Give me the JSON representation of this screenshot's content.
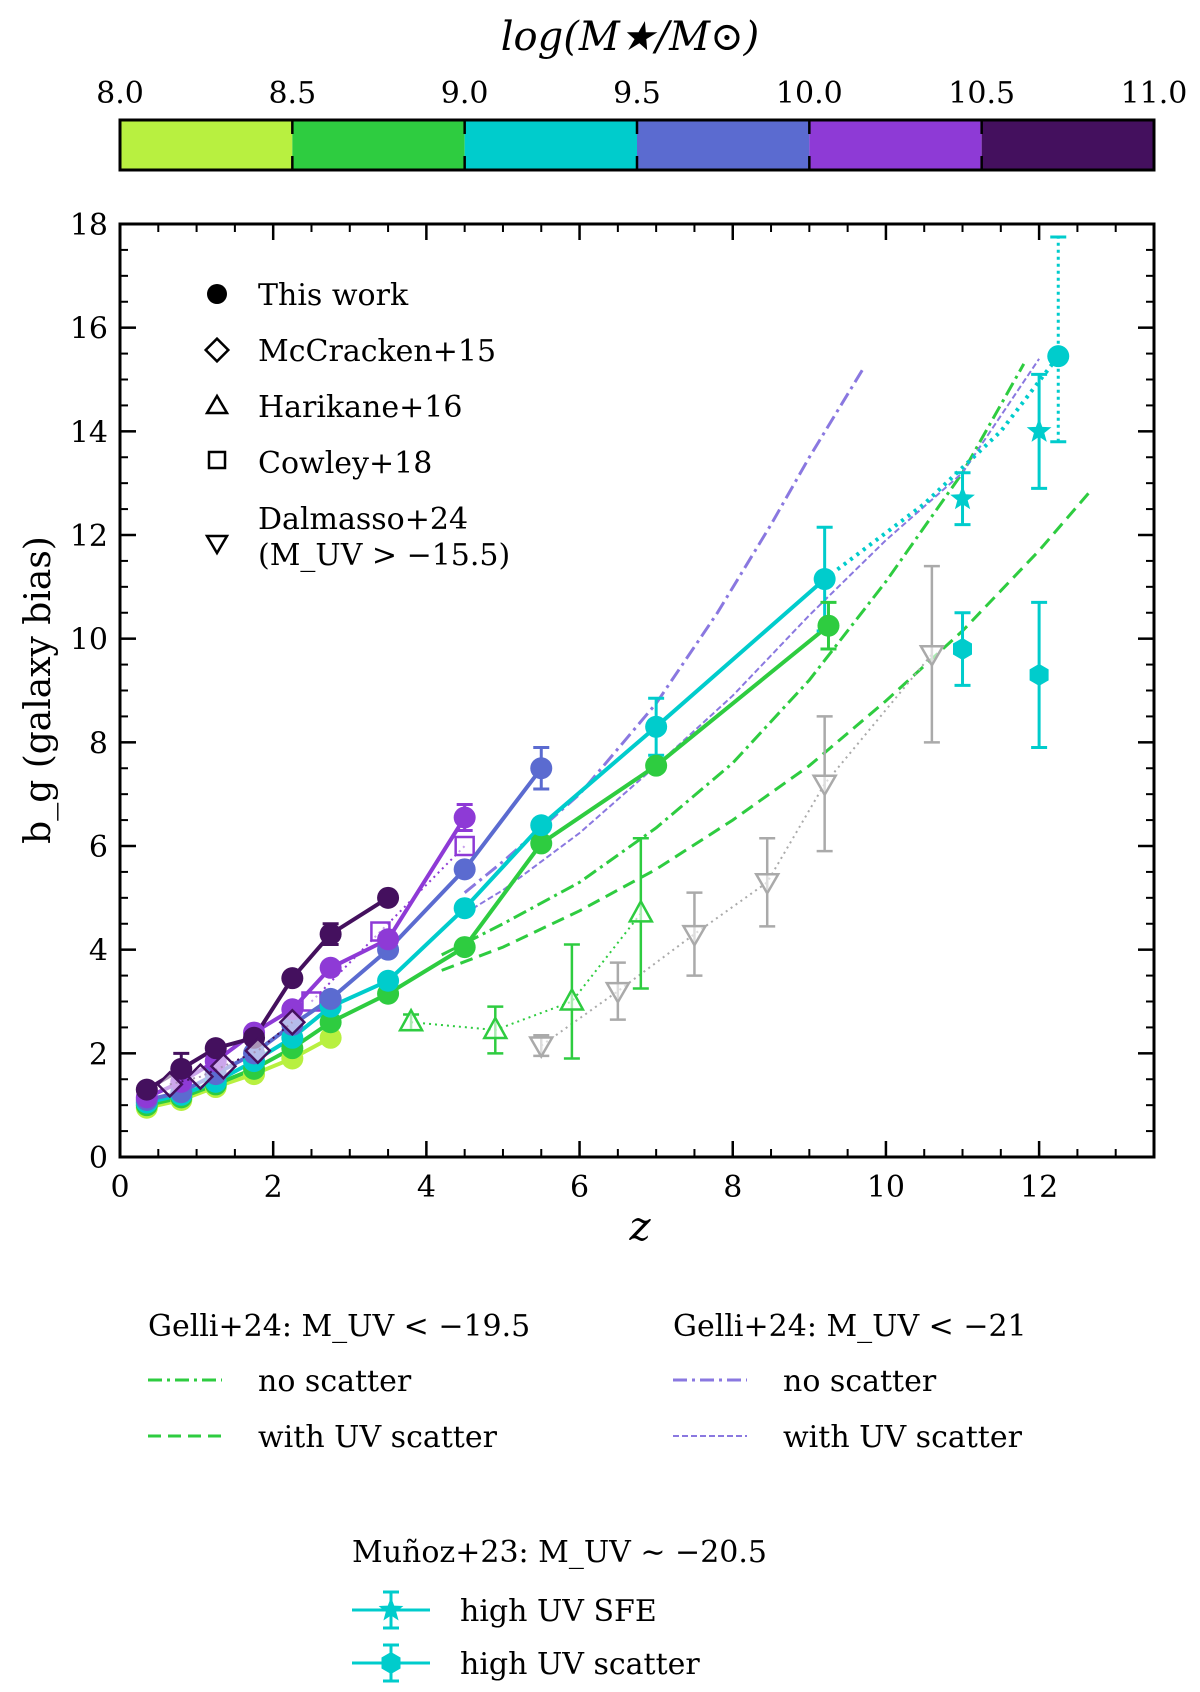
{
  "colorbar": {
    "title": "log(M★/M⊙)",
    "ticks": [
      "8.0",
      "8.5",
      "9.0",
      "9.5",
      "10.0",
      "10.5",
      "11.0"
    ],
    "colors": [
      "#b8f040",
      "#2ecc40",
      "#00cccc",
      "#5b6bd0",
      "#8e3ad6",
      "#44105e"
    ]
  },
  "chart_data": {
    "type": "scatter",
    "xlabel": "z",
    "ylabel": "b_g (galaxy bias)",
    "xlim": [
      0,
      13.5
    ],
    "ylim": [
      0,
      18
    ],
    "xticks": [
      "0",
      "2",
      "4",
      "6",
      "8",
      "10",
      "12"
    ],
    "yticks": [
      "0",
      "2",
      "4",
      "6",
      "8",
      "10",
      "12",
      "14",
      "16",
      "18"
    ],
    "this_work": [
      {
        "bin": "8.0-8.5",
        "color": "#b8f040",
        "x": [
          0.35,
          0.8,
          1.25,
          1.75,
          2.25,
          2.75
        ],
        "y": [
          0.95,
          1.1,
          1.35,
          1.6,
          1.9,
          2.3
        ]
      },
      {
        "bin": "8.5-9.0",
        "color": "#2ecc40",
        "x": [
          0.35,
          0.8,
          1.25,
          1.75,
          2.25,
          2.75,
          3.5,
          4.5,
          5.5,
          7.0,
          9.25
        ],
        "y": [
          1.0,
          1.15,
          1.4,
          1.7,
          2.1,
          2.6,
          3.15,
          4.05,
          6.05,
          7.55,
          10.25
        ]
      },
      {
        "bin": "9.0-9.5",
        "color": "#00cccc",
        "x": [
          0.35,
          0.8,
          1.25,
          1.75,
          2.25,
          2.75,
          3.5,
          4.5,
          5.5,
          7.0,
          9.2,
          12.25
        ],
        "y": [
          1.05,
          1.2,
          1.45,
          1.85,
          2.3,
          2.9,
          3.4,
          4.8,
          6.4,
          8.3,
          11.15,
          15.45
        ]
      },
      {
        "bin": "9.5-10.0",
        "color": "#5b6bd0",
        "x": [
          0.35,
          0.8,
          1.25,
          1.75,
          2.25,
          2.75,
          3.5,
          4.5,
          5.5
        ],
        "y": [
          1.1,
          1.25,
          1.6,
          2.0,
          2.55,
          3.05,
          4.0,
          5.55,
          7.5
        ]
      },
      {
        "bin": "10.0-10.5",
        "color": "#8e3ad6",
        "x": [
          0.35,
          0.8,
          1.25,
          1.75,
          2.25,
          2.75,
          3.5,
          4.5
        ],
        "y": [
          1.15,
          1.45,
          1.85,
          2.4,
          2.85,
          3.65,
          4.2,
          6.55
        ]
      },
      {
        "bin": "10.5-11.0",
        "color": "#44105e",
        "x": [
          0.35,
          0.8,
          1.25,
          1.75,
          2.25,
          2.75,
          3.5
        ],
        "y": [
          1.3,
          1.7,
          2.1,
          2.3,
          3.45,
          4.3,
          5.0
        ]
      }
    ],
    "mccracken15": {
      "color": "#44105e",
      "x": [
        0.65,
        1.05,
        1.35,
        1.8,
        2.25
      ],
      "y": [
        1.4,
        1.55,
        1.75,
        2.05,
        2.6
      ]
    },
    "cowley18": {
      "color": "#8e3ad6",
      "x": [
        2.5,
        3.4,
        4.5
      ],
      "y": [
        3.0,
        4.35,
        6.0
      ]
    },
    "harikane16": {
      "color": "#2ecc40",
      "x": [
        3.8,
        4.9,
        5.9,
        6.8
      ],
      "y": [
        2.6,
        2.45,
        3.0,
        4.7
      ],
      "yerr": [
        0.15,
        0.45,
        1.1,
        1.45
      ]
    },
    "dalmasso24": {
      "color": "#aaaaaa",
      "x": [
        5.5,
        6.5,
        7.5,
        8.45,
        9.2,
        10.6
      ],
      "y": [
        2.15,
        3.2,
        4.3,
        5.3,
        7.2,
        9.7
      ],
      "yerr": [
        0.2,
        0.55,
        0.8,
        0.85,
        1.3,
        1.7
      ]
    },
    "gelli_195_noscatter": {
      "color": "#2ecc40",
      "x": [
        4.2,
        5.0,
        6.0,
        7.0,
        8.0,
        9.0,
        10.0,
        11.0,
        11.8
      ],
      "y": [
        3.9,
        4.5,
        5.3,
        6.35,
        7.6,
        9.2,
        11.1,
        13.2,
        15.3
      ]
    },
    "gelli_195_scatter": {
      "color": "#2ecc40",
      "x": [
        4.2,
        5.0,
        6.0,
        7.0,
        8.0,
        9.0,
        10.0,
        11.0,
        12.0,
        12.7
      ],
      "y": [
        3.6,
        4.05,
        4.75,
        5.55,
        6.5,
        7.55,
        8.8,
        10.15,
        11.7,
        12.9
      ]
    },
    "gelli_21_noscatter": {
      "color": "#8a78e0",
      "x": [
        4.5,
        5.0,
        6.0,
        7.0,
        7.8,
        8.5,
        9.0,
        9.7
      ],
      "y": [
        5.1,
        5.7,
        7.0,
        8.75,
        10.5,
        12.2,
        13.5,
        15.2
      ]
    },
    "gelli_21_scatter": {
      "color": "#8a78e0",
      "x": [
        4.5,
        5.0,
        6.0,
        7.0,
        8.0,
        9.0,
        10.0,
        11.0,
        12.0
      ],
      "y": [
        4.7,
        5.15,
        6.25,
        7.55,
        8.9,
        10.45,
        11.9,
        13.2,
        15.4
      ]
    },
    "munoz23_high_sfe": {
      "color": "#00cccc",
      "x": [
        11.0,
        12.0
      ],
      "y": [
        12.7,
        14.0
      ],
      "yerr": [
        0.5,
        1.1
      ]
    },
    "munoz23_high_scatter": {
      "color": "#00cccc",
      "x": [
        11.0,
        12.0
      ],
      "y": [
        9.8,
        9.3
      ],
      "yerr": [
        0.7,
        1.4
      ]
    },
    "cyan_dotted_extension": {
      "color": "#00cccc",
      "x": [
        9.2,
        10.5,
        11.5,
        12.25
      ],
      "y": [
        11.15,
        12.6,
        14.0,
        15.45
      ]
    }
  },
  "legend_main": {
    "this_work": "This work",
    "mccracken": "McCracken+15",
    "harikane": "Harikane+16",
    "cowley": "Cowley+18",
    "dalmasso_line1": "Dalmasso+24",
    "dalmasso_line2": "(M_UV > −15.5)"
  },
  "legend_gelli_a": {
    "title": "Gelli+24:  M_UV < −19.5",
    "no_scatter": "no scatter",
    "with_scatter": "with UV scatter"
  },
  "legend_gelli_b": {
    "title": "Gelli+24:  M_UV < −21",
    "no_scatter": "no scatter",
    "with_scatter": "with UV scatter"
  },
  "legend_munoz": {
    "title": "Muñoz+23:  M_UV ∼ −20.5",
    "high_sfe": "high UV SFE",
    "high_scatter": "high UV scatter"
  }
}
